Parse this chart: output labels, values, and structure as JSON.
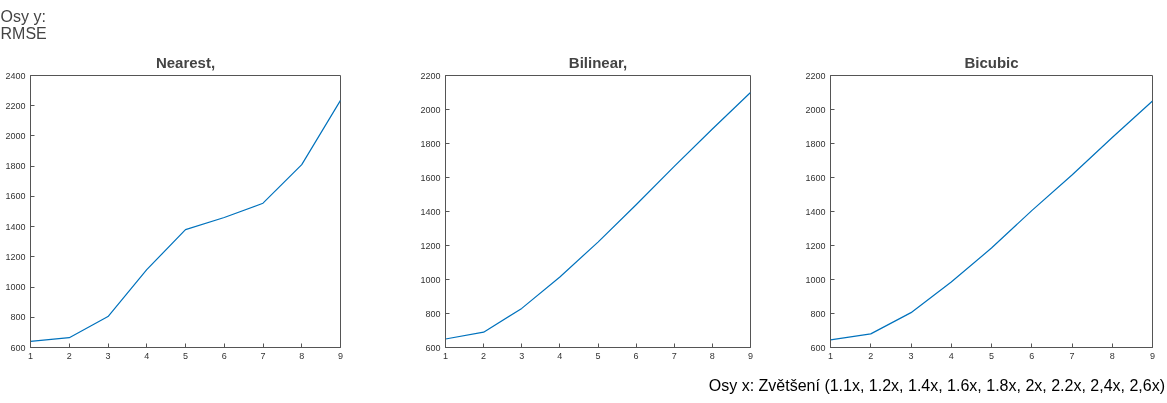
{
  "chart_data": [
    {
      "type": "line",
      "title": "Nearest,",
      "annotations": [
        "Osy y:\nRMSE"
      ],
      "x": [
        1,
        2,
        3,
        4,
        5,
        6,
        7,
        8,
        9
      ],
      "series": [
        {
          "color": "#0072bd",
          "values": [
            640,
            665,
            805,
            1115,
            1380,
            1460,
            1555,
            1810,
            2235
          ]
        }
      ],
      "xlim": [
        1,
        9
      ],
      "xticks": [
        1,
        2,
        3,
        4,
        5,
        6,
        7,
        8,
        9
      ],
      "ylim": [
        600,
        2400
      ],
      "yticks": [
        600,
        800,
        1000,
        1200,
        1400,
        1600,
        1800,
        2000,
        2200,
        2400
      ],
      "grid": false
    },
    {
      "type": "line",
      "title": "Bilinear,",
      "x": [
        1,
        2,
        3,
        4,
        5,
        6,
        7,
        8,
        9
      ],
      "series": [
        {
          "color": "#0072bd",
          "values": [
            650,
            690,
            830,
            1015,
            1220,
            1440,
            1665,
            1885,
            2100
          ]
        }
      ],
      "xlim": [
        1,
        9
      ],
      "xticks": [
        1,
        2,
        3,
        4,
        5,
        6,
        7,
        8,
        9
      ],
      "ylim": [
        600,
        2200
      ],
      "yticks": [
        600,
        800,
        1000,
        1200,
        1400,
        1600,
        1800,
        2000,
        2200
      ],
      "grid": false
    },
    {
      "type": "line",
      "title": "Bicubic",
      "annotations": [
        "Osy x: Zvětšení (1.1x, 1.2x, 1.4x, 1.6x, 1.8x, 2x, 2.2x, 2,4x, 2,6x)"
      ],
      "x": [
        1,
        2,
        3,
        4,
        5,
        6,
        7,
        8,
        9
      ],
      "series": [
        {
          "color": "#0072bd",
          "values": [
            645,
            680,
            805,
            985,
            1185,
            1405,
            1615,
            1835,
            2050
          ]
        }
      ],
      "xlim": [
        1,
        9
      ],
      "xticks": [
        1,
        2,
        3,
        4,
        5,
        6,
        7,
        8,
        9
      ],
      "ylim": [
        600,
        2200
      ],
      "yticks": [
        600,
        800,
        1000,
        1200,
        1400,
        1600,
        1800,
        2000,
        2200
      ],
      "grid": false
    }
  ]
}
